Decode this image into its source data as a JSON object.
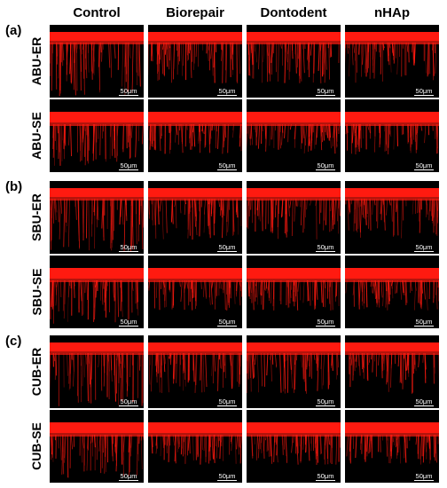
{
  "columns": [
    "Control",
    "Biorepair",
    "Dontodent",
    "nHAp"
  ],
  "sections": [
    {
      "label": "(a)",
      "rows": [
        "ABU-ER",
        "ABU-SE"
      ]
    },
    {
      "label": "(b)",
      "rows": [
        "SBU-ER",
        "SBU-SE"
      ]
    },
    {
      "label": "(c)",
      "rows": [
        "CUB-ER",
        "CUB-SE"
      ]
    }
  ],
  "scale_bar_text": "50μm",
  "colors": {
    "fluorescence": "#ff1a10",
    "background": "#000000",
    "scale_bar": "#ffffff"
  }
}
